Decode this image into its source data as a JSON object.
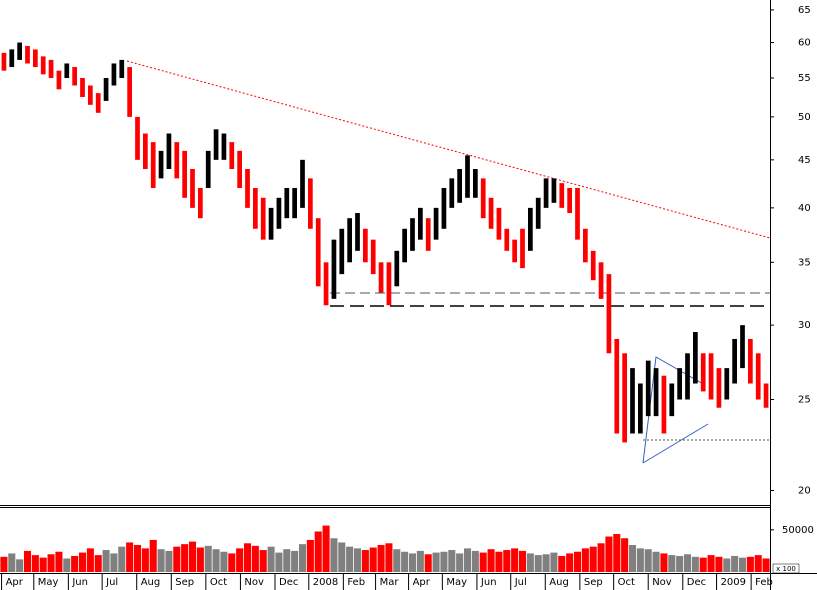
{
  "chart_data": {
    "type": "stock",
    "log_scale": true,
    "xlim": [
      0,
      98
    ],
    "xticks": [
      {
        "value": 0.2,
        "label": "Apr"
      },
      {
        "value": 4.3,
        "label": "May"
      },
      {
        "value": 8.7,
        "label": "Jun"
      },
      {
        "value": 13,
        "label": "Jul"
      },
      {
        "value": 17.4,
        "label": "Aug"
      },
      {
        "value": 21.8,
        "label": "Sep"
      },
      {
        "value": 26.2,
        "label": "Oct"
      },
      {
        "value": 30.6,
        "label": "Nov"
      },
      {
        "value": 35,
        "label": "Dec"
      },
      {
        "value": 39.3,
        "label": "2008"
      },
      {
        "value": 43.7,
        "label": "Feb"
      },
      {
        "value": 47.8,
        "label": "Mar"
      },
      {
        "value": 52,
        "label": "Apr"
      },
      {
        "value": 56.3,
        "label": "May"
      },
      {
        "value": 60.7,
        "label": "Jun"
      },
      {
        "value": 65,
        "label": "Jul"
      },
      {
        "value": 69.4,
        "label": "Aug"
      },
      {
        "value": 73.8,
        "label": "Sep"
      },
      {
        "value": 78.1,
        "label": "Oct"
      },
      {
        "value": 82.5,
        "label": "Nov"
      },
      {
        "value": 86.9,
        "label": "Dec"
      },
      {
        "value": 91.2,
        "label": "2009"
      },
      {
        "value": 95.6,
        "label": "Feb"
      }
    ],
    "ylim": [
      19.3,
      66.6
    ],
    "yticks": [
      20,
      25,
      30,
      35,
      40,
      45,
      50,
      55,
      60,
      65
    ],
    "up_color": "#000000",
    "down_color": "#ff0000",
    "high": [
      58.5,
      59,
      60,
      59.5,
      59,
      58,
      57.5,
      56,
      57,
      56.5,
      55,
      54,
      53,
      55,
      57,
      57.5,
      56.5,
      50,
      48,
      47,
      46,
      48,
      47,
      46,
      44,
      42,
      46,
      48.5,
      48,
      47,
      46,
      44,
      42,
      41,
      40,
      41,
      42,
      42,
      45,
      43,
      39,
      35,
      37,
      38,
      39,
      39.5,
      38,
      37,
      35,
      35,
      36,
      38,
      39,
      40,
      39,
      40,
      42,
      43,
      44,
      45.5,
      44,
      43,
      41,
      40,
      38,
      37,
      38,
      40,
      41,
      43,
      43,
      42.5,
      42,
      42,
      38,
      36,
      35,
      34,
      29,
      28,
      27,
      26,
      27.5,
      27,
      26.5,
      26,
      27,
      28,
      29.5,
      28,
      28,
      27,
      27,
      29,
      30,
      29,
      28,
      26
    ],
    "low": [
      56,
      56.5,
      57.5,
      57,
      56.5,
      55.5,
      55,
      53.5,
      55,
      54,
      52.5,
      51.5,
      50.5,
      52,
      54,
      55,
      50,
      45,
      44,
      42,
      43,
      44,
      43,
      41,
      40,
      39,
      42,
      45,
      45,
      44,
      42,
      40,
      38,
      37,
      37,
      38,
      39,
      39,
      40,
      38,
      33,
      31.5,
      32,
      34,
      35,
      36,
      35,
      34,
      32.5,
      31.5,
      33,
      35,
      36,
      37,
      36,
      37,
      38,
      40,
      40.5,
      41,
      41,
      39,
      38,
      37,
      36,
      35,
      34.5,
      36,
      38,
      40,
      40.5,
      40,
      39.5,
      37,
      35,
      33.5,
      32,
      28,
      23,
      22.5,
      23,
      23,
      24,
      24,
      23,
      24,
      25,
      25,
      26,
      25.5,
      25,
      24.5,
      25,
      26,
      27,
      26,
      25,
      24.5
    ],
    "volume": {
      "ylim": [
        0,
        77000
      ],
      "yticks": [
        50000
      ],
      "unit_label": "x 100",
      "up_color": "#808080",
      "down_color": "#ff0000",
      "values": [
        18000,
        22000,
        15000,
        25000,
        20000,
        17000,
        21000,
        24000,
        16000,
        19000,
        23000,
        28000,
        20000,
        26000,
        22000,
        30000,
        35000,
        32000,
        28000,
        38000,
        27000,
        25000,
        30000,
        33000,
        36000,
        29000,
        31000,
        27000,
        24000,
        22000,
        28000,
        34000,
        31000,
        26000,
        30000,
        23000,
        27000,
        25000,
        33000,
        38000,
        48000,
        55000,
        40000,
        35000,
        30000,
        28000,
        26000,
        29000,
        32000,
        34000,
        27000,
        24000,
        22000,
        25000,
        21000,
        23000,
        24000,
        26000,
        22000,
        28000,
        25000,
        23000,
        27000,
        24000,
        26000,
        28000,
        25000,
        22000,
        20000,
        21000,
        23000,
        19000,
        22000,
        24000,
        28000,
        30000,
        34000,
        42000,
        45000,
        40000,
        32000,
        28000,
        27000,
        24000,
        22000,
        20000,
        19000,
        21000,
        18000,
        17000,
        20000,
        18000,
        16000,
        19000,
        17000,
        18000,
        20000,
        16000
      ]
    }
  }
}
